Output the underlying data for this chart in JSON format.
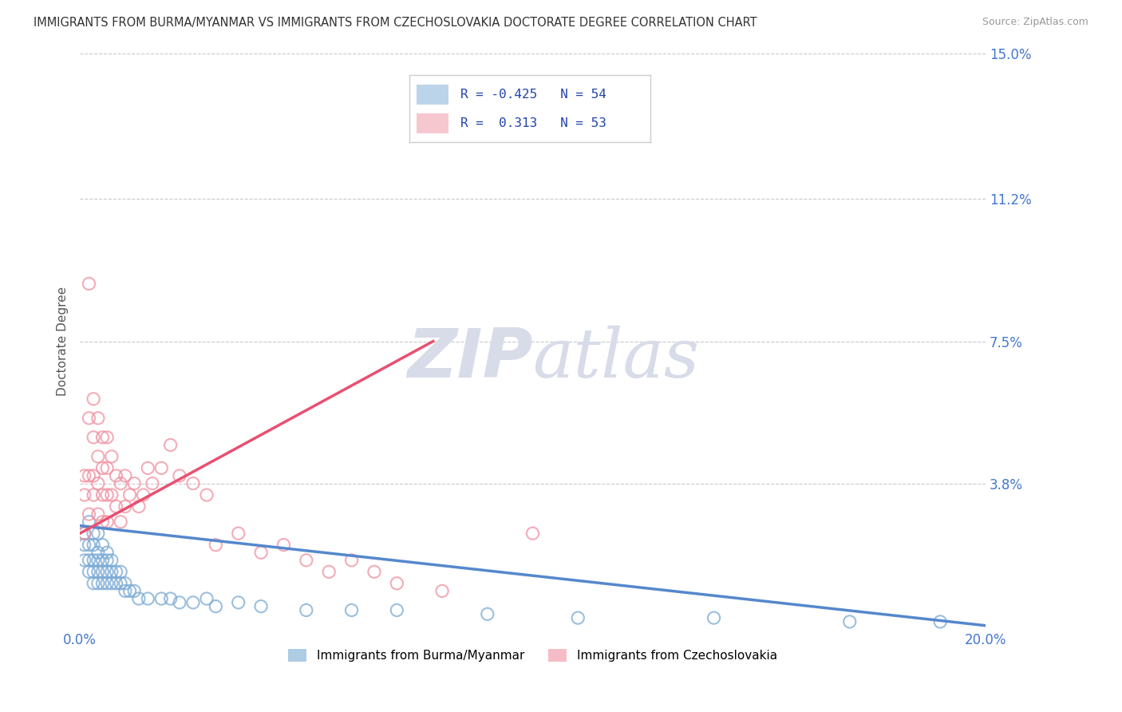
{
  "title": "IMMIGRANTS FROM BURMA/MYANMAR VS IMMIGRANTS FROM CZECHOSLOVAKIA DOCTORATE DEGREE CORRELATION CHART",
  "source": "Source: ZipAtlas.com",
  "ylabel_left": "Doctorate Degree",
  "legend_blue_label": "Immigrants from Burma/Myanmar",
  "legend_pink_label": "Immigrants from Czechoslovakia",
  "R_blue": -0.425,
  "N_blue": 54,
  "R_pink": 0.313,
  "N_pink": 53,
  "xlim": [
    0.0,
    0.2
  ],
  "ylim": [
    0.0,
    0.15
  ],
  "yticks_right": [
    0.0,
    0.038,
    0.075,
    0.112,
    0.15
  ],
  "ytick_labels_right": [
    "",
    "3.8%",
    "7.5%",
    "11.2%",
    "15.0%"
  ],
  "background_color": "#ffffff",
  "grid_color": "#c8c8d0",
  "blue_dot_color": "#7aaad4",
  "pink_dot_color": "#f090a0",
  "blue_line_color": "#5588cc",
  "pink_line_color": "#e85070",
  "axis_label_color": "#4477cc",
  "watermark_color": "#d8dce8",
  "blue_x": [
    0.001,
    0.001,
    0.001,
    0.002,
    0.002,
    0.002,
    0.002,
    0.003,
    0.003,
    0.003,
    0.003,
    0.003,
    0.004,
    0.004,
    0.004,
    0.004,
    0.004,
    0.005,
    0.005,
    0.005,
    0.005,
    0.006,
    0.006,
    0.006,
    0.006,
    0.007,
    0.007,
    0.007,
    0.008,
    0.008,
    0.009,
    0.009,
    0.01,
    0.01,
    0.011,
    0.012,
    0.013,
    0.015,
    0.018,
    0.02,
    0.022,
    0.025,
    0.028,
    0.03,
    0.035,
    0.04,
    0.05,
    0.06,
    0.07,
    0.09,
    0.11,
    0.14,
    0.17,
    0.19
  ],
  "blue_y": [
    0.025,
    0.022,
    0.018,
    0.028,
    0.022,
    0.018,
    0.015,
    0.025,
    0.022,
    0.018,
    0.015,
    0.012,
    0.025,
    0.02,
    0.018,
    0.015,
    0.012,
    0.022,
    0.018,
    0.015,
    0.012,
    0.02,
    0.018,
    0.015,
    0.012,
    0.018,
    0.015,
    0.012,
    0.015,
    0.012,
    0.015,
    0.012,
    0.012,
    0.01,
    0.01,
    0.01,
    0.008,
    0.008,
    0.008,
    0.008,
    0.007,
    0.007,
    0.008,
    0.006,
    0.007,
    0.006,
    0.005,
    0.005,
    0.005,
    0.004,
    0.003,
    0.003,
    0.002,
    0.002
  ],
  "pink_x": [
    0.001,
    0.001,
    0.001,
    0.002,
    0.002,
    0.002,
    0.002,
    0.003,
    0.003,
    0.003,
    0.003,
    0.004,
    0.004,
    0.004,
    0.004,
    0.005,
    0.005,
    0.005,
    0.005,
    0.006,
    0.006,
    0.006,
    0.006,
    0.007,
    0.007,
    0.008,
    0.008,
    0.009,
    0.009,
    0.01,
    0.01,
    0.011,
    0.012,
    0.013,
    0.014,
    0.015,
    0.016,
    0.018,
    0.02,
    0.022,
    0.025,
    0.028,
    0.03,
    0.035,
    0.04,
    0.045,
    0.05,
    0.055,
    0.06,
    0.065,
    0.07,
    0.08,
    0.1
  ],
  "pink_y": [
    0.04,
    0.035,
    0.025,
    0.09,
    0.055,
    0.04,
    0.03,
    0.06,
    0.05,
    0.04,
    0.035,
    0.055,
    0.045,
    0.038,
    0.03,
    0.05,
    0.042,
    0.035,
    0.028,
    0.05,
    0.042,
    0.035,
    0.028,
    0.045,
    0.035,
    0.04,
    0.032,
    0.038,
    0.028,
    0.04,
    0.032,
    0.035,
    0.038,
    0.032,
    0.035,
    0.042,
    0.038,
    0.042,
    0.048,
    0.04,
    0.038,
    0.035,
    0.022,
    0.025,
    0.02,
    0.022,
    0.018,
    0.015,
    0.018,
    0.015,
    0.012,
    0.01,
    0.025
  ],
  "blue_line_x0": 0.0,
  "blue_line_x1": 0.2,
  "blue_line_y0": 0.027,
  "blue_line_y1": 0.001,
  "pink_line_x0": 0.0,
  "pink_line_x1": 0.078,
  "pink_line_y0": 0.025,
  "pink_line_y1": 0.075
}
